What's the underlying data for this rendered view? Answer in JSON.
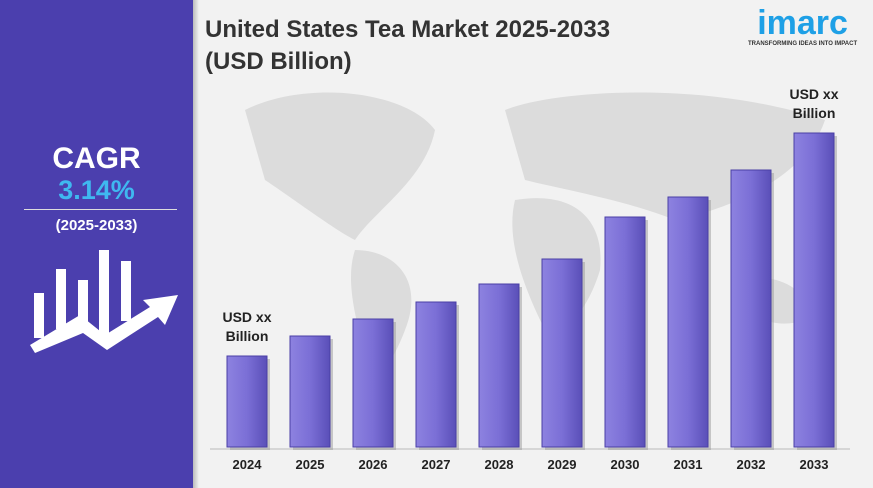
{
  "sidebar": {
    "cagr_label": "CAGR",
    "cagr_value": "3.14%",
    "period": "(2025-2033)"
  },
  "logo": {
    "name": "imarc",
    "tagline": "TRANSFORMING IDEAS INTO IMPACT"
  },
  "colors": {
    "sidebar": "#4b3fae",
    "bar": "#7b6fd6",
    "cagr_value": "#3fb8f0",
    "logo": "#1ea0e6"
  },
  "chart_data": {
    "type": "bar",
    "title": "United States Tea Market 2025-2033 (USD Billion)",
    "categories": [
      "2024",
      "2025",
      "2026",
      "2027",
      "2028",
      "2029",
      "2030",
      "2031",
      "2032",
      "2033"
    ],
    "values": [
      91,
      111,
      128,
      145,
      163,
      188,
      230,
      250,
      277,
      314
    ],
    "value_note_unlabeled": true,
    "annotations": [
      {
        "category": "2024",
        "text": [
          "USD xx",
          "Billion"
        ]
      },
      {
        "category": "2033",
        "text": [
          "USD xx",
          "Billion"
        ]
      }
    ],
    "grid": false
  }
}
